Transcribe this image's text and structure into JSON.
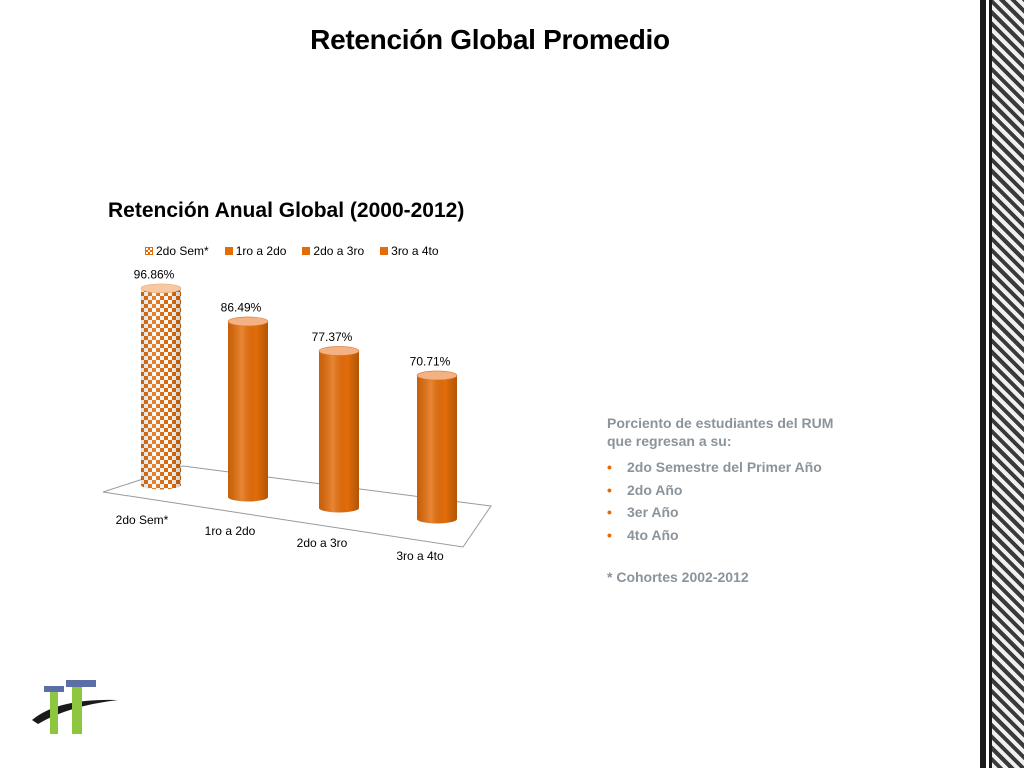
{
  "slide": {
    "title": "Retención Global Promedio"
  },
  "chart_data": {
    "type": "bar",
    "title": "Retención Anual Global (2000-2012)",
    "categories": [
      "2do Sem*",
      "1ro a 2do",
      "2do a 3ro",
      "3ro a 4to"
    ],
    "series": [
      {
        "name": "2do Sem*",
        "values": [
          96.86,
          null,
          null,
          null
        ]
      },
      {
        "name": "1ro a 2do",
        "values": [
          null,
          86.49,
          null,
          null
        ]
      },
      {
        "name": "2do a 3ro",
        "values": [
          null,
          null,
          77.37,
          null
        ]
      },
      {
        "name": "3ro a 4to",
        "values": [
          null,
          null,
          null,
          70.71
        ]
      }
    ],
    "values": [
      96.86,
      86.49,
      77.37,
      70.71
    ],
    "data_labels": [
      "96.86%",
      "86.49%",
      "77.37%",
      "70.71%"
    ],
    "ylim": [
      0,
      100
    ],
    "grid": false,
    "legend": "top",
    "style": "3d-cylinder",
    "colors": {
      "orange": "#e36c09",
      "pattern": "checkered-orange"
    }
  },
  "panel": {
    "intro": "Porciento de estudiantes del RUM que regresan a su:",
    "bullets": [
      "2do Semestre del Primer Año",
      "2do Año",
      "3er Año",
      "4to Año"
    ],
    "note": "* Cohortes 2002-2012"
  },
  "logo": {
    "icon": "institution-logo"
  }
}
